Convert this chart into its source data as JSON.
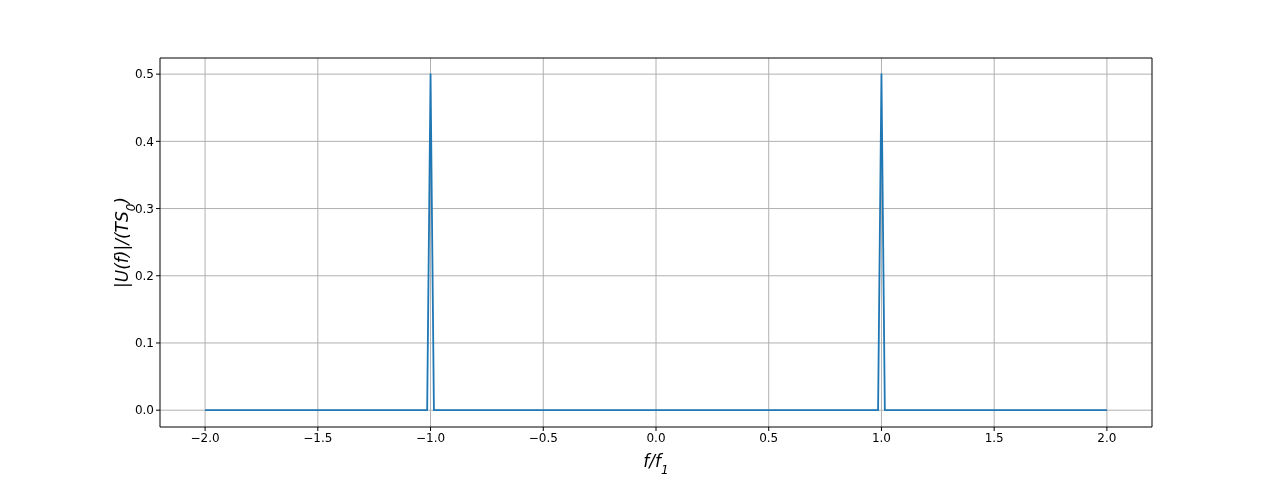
{
  "chart_data": {
    "type": "line",
    "xlabel": "f/f$_{1}$",
    "ylabel": "|U(f)|/(TS$_{0}$)",
    "x": [
      -2.0,
      -1.5,
      -1.015,
      -1.0075,
      -1.0,
      -0.9925,
      -0.985,
      -0.5,
      0.0,
      0.5,
      0.985,
      0.9925,
      1.0,
      1.0075,
      1.015,
      1.5,
      2.0
    ],
    "series": [
      {
        "color": "#1f77b4",
        "values": [
          0.0,
          0.0,
          0.0,
          0.25,
          0.5,
          0.25,
          0.0,
          0.0,
          0.0,
          0.0,
          0.0,
          0.25,
          0.5,
          0.25,
          0.0,
          0.0,
          0.0
        ]
      }
    ],
    "xlim": [
      -2.2,
      2.2
    ],
    "xticks": [
      {
        "value": -2.0,
        "label": "−2.0"
      },
      {
        "value": -1.5,
        "label": "−1.5"
      },
      {
        "value": -1.0,
        "label": "−1.0"
      },
      {
        "value": -0.5,
        "label": "−0.5"
      },
      {
        "value": 0.0,
        "label": "0.0"
      },
      {
        "value": 0.5,
        "label": "0.5"
      },
      {
        "value": 1.0,
        "label": "1.0"
      },
      {
        "value": 1.5,
        "label": "1.5"
      },
      {
        "value": 2.0,
        "label": "2.0"
      }
    ],
    "ylim": [
      -0.025,
      0.524
    ],
    "yticks": [
      {
        "value": 0.0,
        "label": "0.0"
      },
      {
        "value": 0.1,
        "label": "0.1"
      },
      {
        "value": 0.2,
        "label": "0.2"
      },
      {
        "value": 0.3,
        "label": "0.3"
      },
      {
        "value": 0.4,
        "label": "0.4"
      },
      {
        "value": 0.5,
        "label": "0.5"
      }
    ],
    "grid": true,
    "marker": "none",
    "line_style": "solid",
    "legend": false
  }
}
